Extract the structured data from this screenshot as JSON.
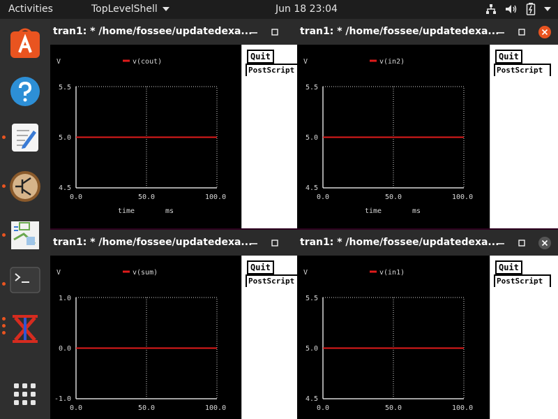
{
  "topbar": {
    "activities": "Activities",
    "app_menu": "TopLevelShell",
    "clock": "Jun 18  23:04"
  },
  "dock": {
    "items": [
      "ubuntu-software",
      "help",
      "text-editor",
      "circuit-simulator",
      "diagram-editor",
      "terminal",
      "kicad-app",
      "show-applications"
    ]
  },
  "windows": [
    {
      "title": "tran1: * /home/fossee/updatedexa...",
      "controls": [
        "minimize",
        "maximize"
      ],
      "y_unit": "V",
      "legend": "v(cout)",
      "yticks": [
        "5.5",
        "5.0",
        "4.5"
      ],
      "xticks": [
        "0.0",
        "50.0",
        "100.0"
      ],
      "xlabel": "time",
      "xunit": "ms",
      "quit": "Quit",
      "postscript": "PostScript"
    },
    {
      "title": "tran1: * /home/fossee/updatedexa...",
      "controls": [
        "minimize",
        "maximize",
        "close"
      ],
      "y_unit": "V",
      "legend": "v(in2)",
      "yticks": [
        "5.5",
        "5.0",
        "4.5"
      ],
      "xticks": [
        "0.0",
        "50.0",
        "100.0"
      ],
      "xlabel": "time",
      "xunit": "ms",
      "quit": "Quit",
      "postscript": "PostScript"
    },
    {
      "title": "tran1: * /home/fossee/updatedexa...",
      "controls": [
        "minimize",
        "maximize"
      ],
      "y_unit": "V",
      "legend": "v(sum)",
      "yticks": [
        "1.0",
        "0.0",
        "-1.0"
      ],
      "xticks": [
        "0.0",
        "50.0",
        "100.0"
      ],
      "xlabel": "",
      "xunit": "",
      "quit": "Quit",
      "postscript": "PostScript"
    },
    {
      "title": "tran1: * /home/fossee/updatedexa...",
      "controls": [
        "minimize",
        "maximize",
        "close"
      ],
      "y_unit": "V",
      "legend": "v(in1)",
      "yticks": [
        "5.5",
        "5.0",
        "4.5"
      ],
      "xticks": [
        "0.0",
        "50.0",
        "100.0"
      ],
      "xlabel": "",
      "xunit": "",
      "quit": "Quit",
      "postscript": "PostScript"
    }
  ],
  "colors": {
    "trace": "#e01b1b",
    "accent": "#e95420",
    "close_active": "#e95420",
    "plot_bg": "#000000",
    "grid": "#d8d8d8"
  },
  "chart_data": [
    {
      "type": "line",
      "series": [
        {
          "name": "v(cout)",
          "x": [
            0,
            100
          ],
          "y": [
            5.0,
            5.0
          ]
        }
      ],
      "xlim": [
        0,
        100
      ],
      "ylim": [
        4.5,
        5.5
      ],
      "xlabel": "time",
      "xunit": "ms",
      "ylabel": "V",
      "grid": true
    },
    {
      "type": "line",
      "series": [
        {
          "name": "v(in2)",
          "x": [
            0,
            100
          ],
          "y": [
            5.0,
            5.0
          ]
        }
      ],
      "xlim": [
        0,
        100
      ],
      "ylim": [
        4.5,
        5.5
      ],
      "xlabel": "time",
      "xunit": "ms",
      "ylabel": "V",
      "grid": true
    },
    {
      "type": "line",
      "series": [
        {
          "name": "v(sum)",
          "x": [
            0,
            100
          ],
          "y": [
            0.0,
            0.0
          ]
        }
      ],
      "xlim": [
        0,
        100
      ],
      "ylim": [
        -1.0,
        1.0
      ],
      "xlabel": "",
      "xunit": "",
      "ylabel": "V",
      "grid": true
    },
    {
      "type": "line",
      "series": [
        {
          "name": "v(in1)",
          "x": [
            0,
            100
          ],
          "y": [
            5.0,
            5.0
          ]
        }
      ],
      "xlim": [
        0,
        100
      ],
      "ylim": [
        4.5,
        5.5
      ],
      "xlabel": "",
      "xunit": "",
      "ylabel": "V",
      "grid": true
    }
  ]
}
